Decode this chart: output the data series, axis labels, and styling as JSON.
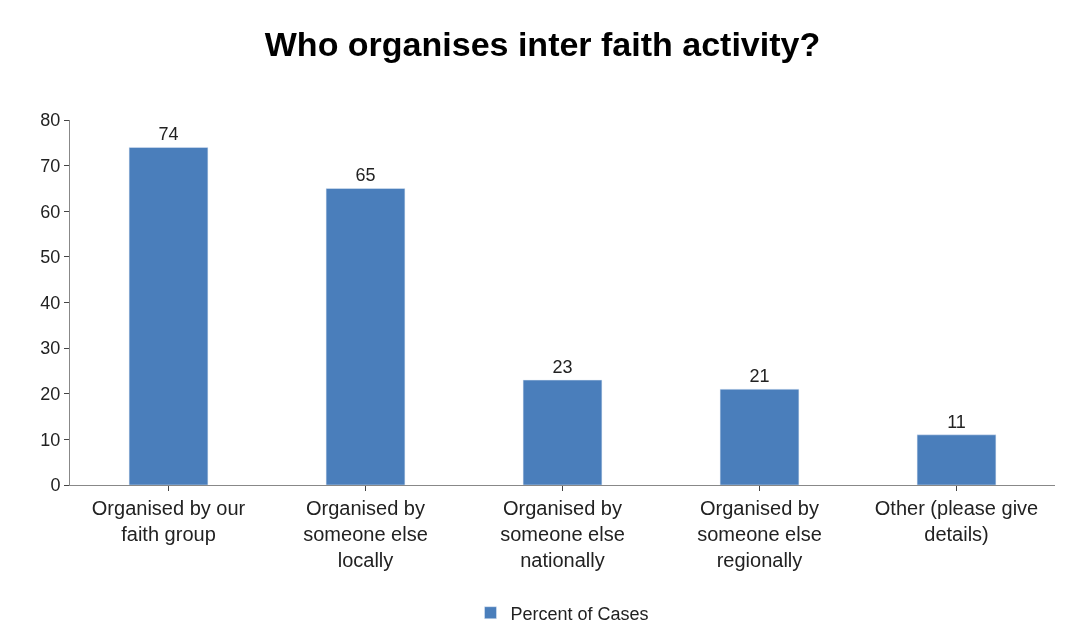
{
  "chart_data": {
    "type": "bar",
    "title": "Who organises inter faith activity?",
    "categories": [
      "Organised by our faith group",
      "Organised by someone else locally",
      "Organised by someone else nationally",
      "Organised by someone else regionally",
      "Other (please give details)"
    ],
    "series": [
      {
        "name": "Percent of Cases",
        "color": "#4a7ebb",
        "values": [
          74,
          65,
          23,
          21,
          11
        ]
      }
    ],
    "ylim": [
      0,
      80
    ],
    "yticks": [
      0,
      10,
      20,
      30,
      40,
      50,
      60,
      70,
      80
    ],
    "grid": false,
    "legend": "bottom",
    "data_labels": true
  }
}
